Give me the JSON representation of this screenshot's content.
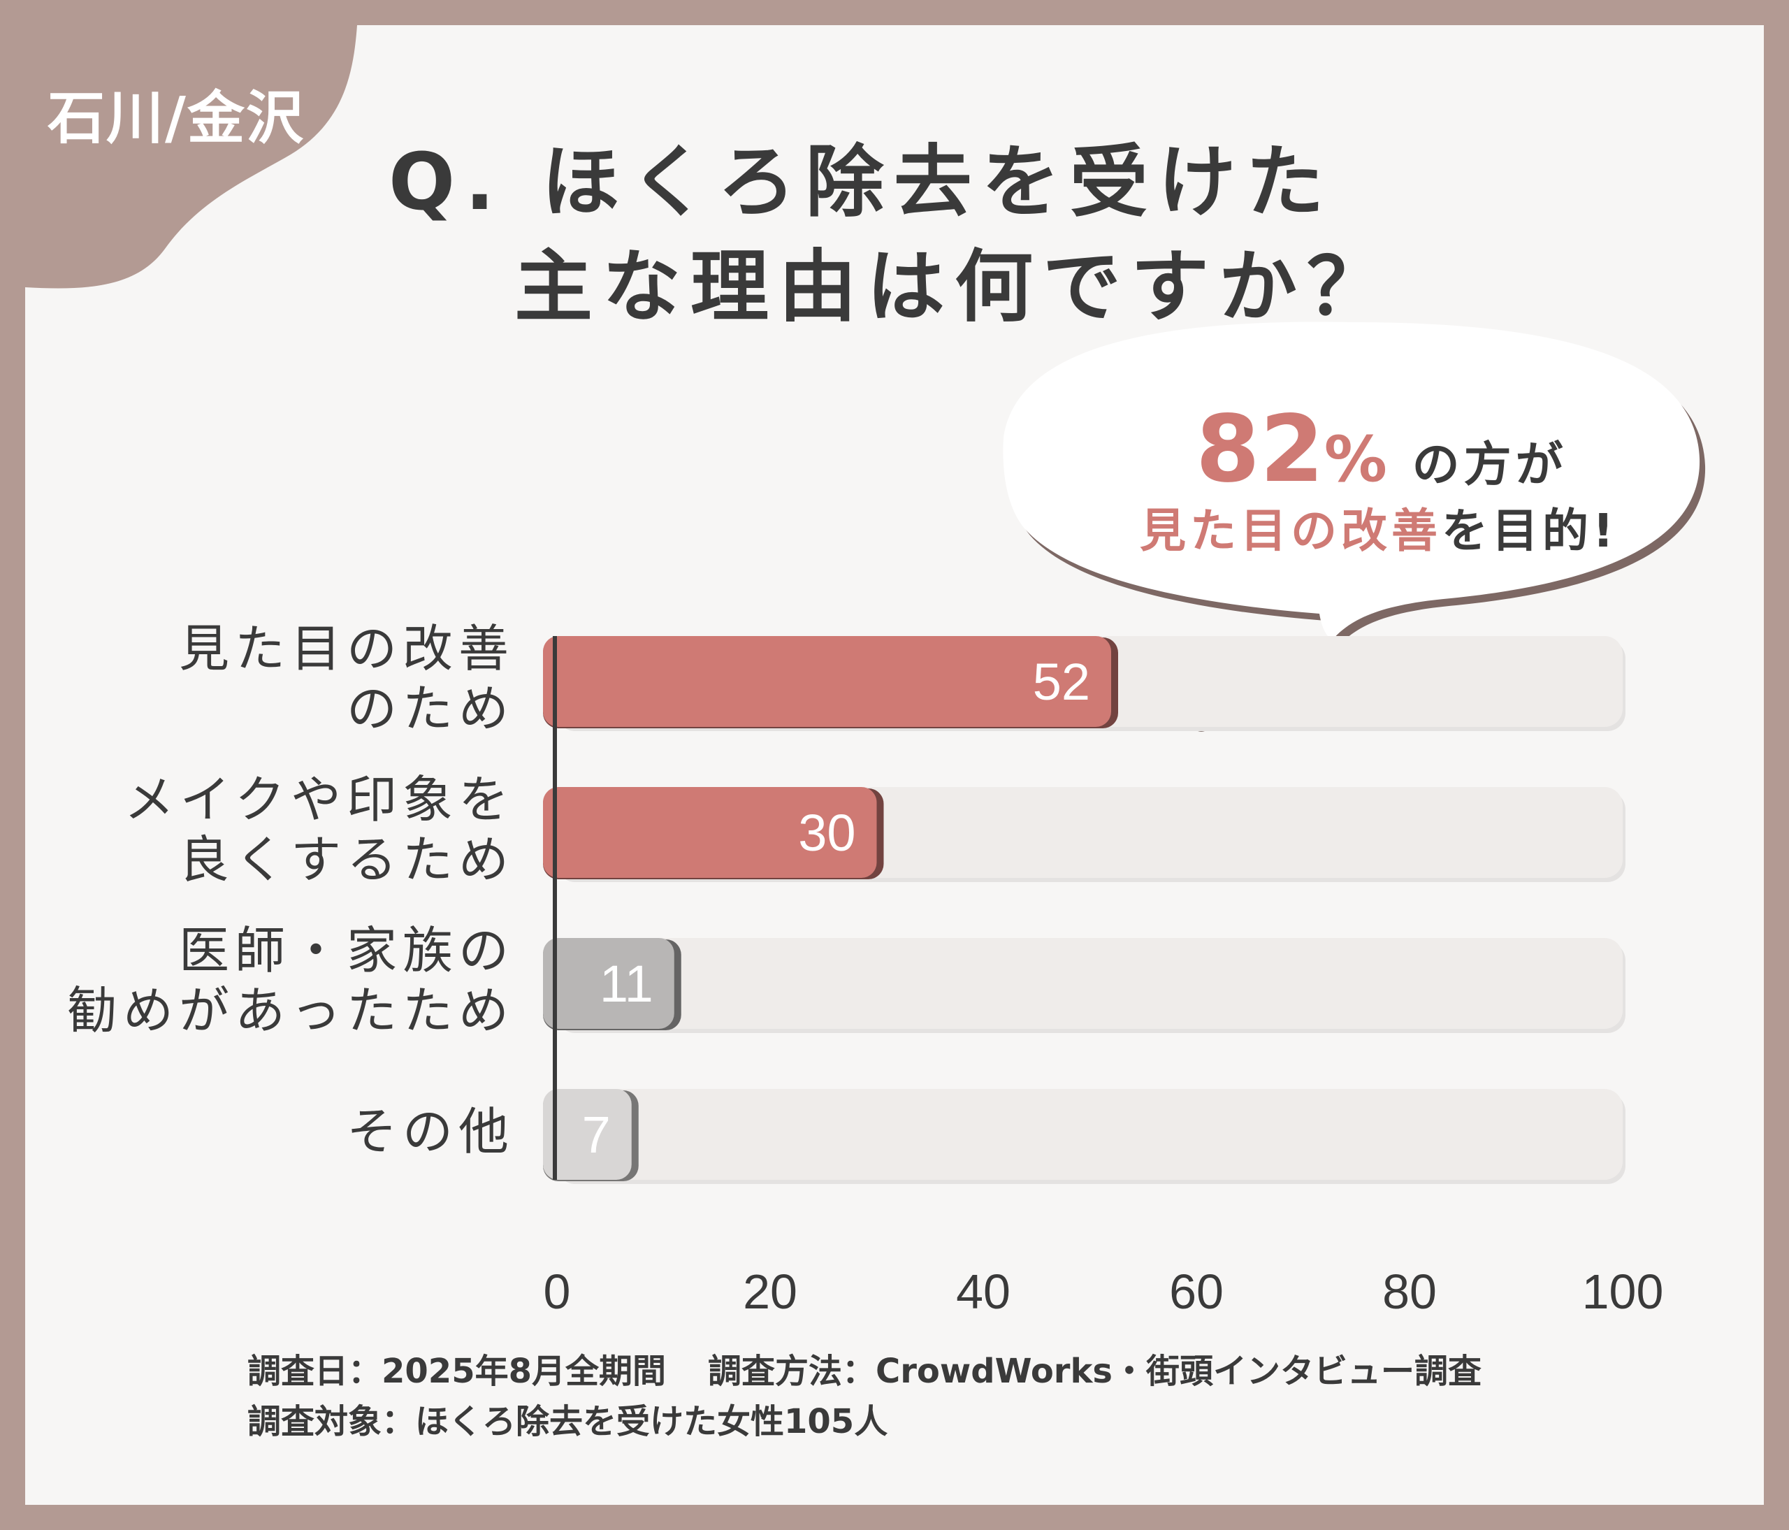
{
  "region_tag": "石川/金沢",
  "title": {
    "line1": "Q. ほくろ除去を受けた",
    "line2": "主な理由は何ですか？"
  },
  "callout": {
    "percent": "82",
    "percent_sign": "%",
    "suffix": "の方が",
    "highlight": "見た目の改善",
    "tail": "を目的!"
  },
  "chart_data": {
    "type": "bar",
    "orientation": "horizontal",
    "categories": [
      [
        "見た目の改善",
        "のため"
      ],
      [
        "メイクや印象を",
        "良くするため"
      ],
      [
        "医師・家族の",
        "勧めがあったため"
      ],
      [
        "その他"
      ]
    ],
    "values": [
      52,
      30,
      11,
      7
    ],
    "xlim": [
      0,
      100
    ],
    "xticks": [
      0,
      20,
      40,
      60,
      80,
      100
    ],
    "colors": [
      "#cf7a74",
      "#cf7a74",
      "#b8b6b5",
      "#d8d6d5"
    ],
    "data_labels": true
  },
  "footer": {
    "date": "調査日：2025年8月全期間",
    "method": "調査方法：CrowdWorks・街頭インタビュー調査",
    "target": "調査対象：ほくろ除去を受けた女性105人"
  }
}
